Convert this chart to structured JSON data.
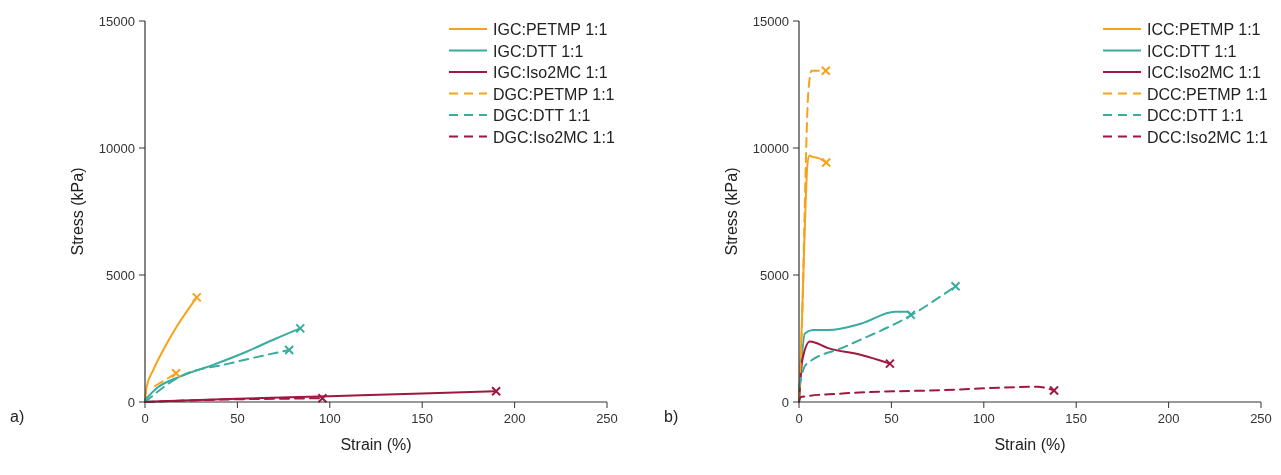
{
  "chart_data": [
    {
      "type": "line",
      "xlabel": "Strain (%)",
      "ylabel": "Stress (kPa)",
      "annotations": [
        "a)"
      ],
      "xlim": [
        0,
        250
      ],
      "xticks": [
        0,
        50,
        100,
        150,
        200,
        250
      ],
      "ylim": [
        0,
        15000
      ],
      "yticks": [
        0,
        5000,
        10000,
        15000
      ],
      "grid": false,
      "legend": "top right",
      "series": [
        {
          "name": "IGC:PETMP 1:1",
          "color": "#f7a21b",
          "line_style": "solid",
          "x": [
            0,
            0.9,
            4.5,
            9.9,
            17.1,
            28
          ],
          "values": [
            0,
            600,
            1260,
            2050,
            2960,
            4120
          ]
        },
        {
          "name": "IGC:DTT 1:1",
          "color": "#3aaba0",
          "line_style": "solid",
          "x": [
            0,
            6.3,
            18.9,
            36.8,
            54.9,
            71.2,
            84
          ],
          "values": [
            80,
            540,
            1000,
            1460,
            1980,
            2510,
            2900
          ]
        },
        {
          "name": "IGC:Iso2MC 1:1",
          "color": "#a0173f",
          "line_style": "solid",
          "x": [
            0,
            50,
            100,
            150,
            190
          ],
          "values": [
            10,
            130,
            230,
            330,
            420
          ]
        },
        {
          "name": "DGC:PETMP 1:1",
          "color": "#f7a21b",
          "line_style": "dashed",
          "x": [
            5.4,
            16.8
          ],
          "values": [
            630,
            1130
          ]
        },
        {
          "name": "DGC:DTT 1:1",
          "color": "#3aaba0",
          "line_style": "dashed",
          "x": [
            0,
            18.9,
            45.9,
            78
          ],
          "values": [
            0,
            1000,
            1520,
            2050
          ]
        },
        {
          "name": "DGC:Iso2MC 1:1",
          "color": "#a0173f",
          "line_style": "dashed",
          "x": [
            0,
            37.6,
            75.2,
            96
          ],
          "values": [
            0,
            90,
            130,
            150
          ]
        }
      ]
    },
    {
      "type": "line",
      "xlabel": "Strain (%)",
      "ylabel": "Stress (kPa)",
      "annotations": [
        "b)"
      ],
      "xlim": [
        0,
        250
      ],
      "xticks": [
        0,
        50,
        100,
        150,
        200,
        250
      ],
      "ylim": [
        0,
        15000
      ],
      "yticks": [
        0,
        5000,
        10000,
        15000
      ],
      "grid": false,
      "legend": "top right",
      "series": [
        {
          "name": "ICC:PETMP 1:1",
          "color": "#f7a21b",
          "line_style": "solid",
          "x": [
            0,
            1.5,
            3,
            4.5,
            5.6,
            7.5,
            10.5,
            14.7
          ],
          "values": [
            0,
            3000,
            6500,
            9300,
            9700,
            9650,
            9600,
            9430
          ]
        },
        {
          "name": "ICC:DTT 1:1",
          "color": "#3aaba0",
          "line_style": "solid",
          "x": [
            0,
            3.2,
            7.5,
            15.8,
            33.8,
            51.9,
            59,
            60.5
          ],
          "values": [
            80,
            2700,
            2830,
            2830,
            3090,
            3550,
            3550,
            3430
          ]
        },
        {
          "name": "ICC:Iso2MC 1:1",
          "color": "#a0173f",
          "line_style": "solid",
          "x": [
            0,
            1.8,
            5.9,
            15.8,
            33.8,
            49.2
          ],
          "values": [
            0,
            1650,
            2380,
            2120,
            1850,
            1510
          ]
        },
        {
          "name": "DCC:PETMP 1:1",
          "color": "#f7a21b",
          "line_style": "dashed",
          "x": [
            0,
            2,
            3.2,
            5,
            6.8,
            14.5
          ],
          "values": [
            0,
            4010,
            7950,
            12150,
            13040,
            13040
          ]
        },
        {
          "name": "DCC:DTT 1:1",
          "color": "#3aaba0",
          "line_style": "dashed",
          "x": [
            0,
            3.6,
            25,
            61,
            84.7
          ],
          "values": [
            600,
            1460,
            2180,
            3430,
            4560
          ]
        },
        {
          "name": "DCC:Iso2MC 1:1",
          "color": "#a0173f",
          "line_style": "dashed",
          "x": [
            0,
            0.9,
            25,
            79,
            129,
            138
          ],
          "values": [
            0,
            200,
            340,
            470,
            600,
            450
          ]
        }
      ]
    }
  ]
}
